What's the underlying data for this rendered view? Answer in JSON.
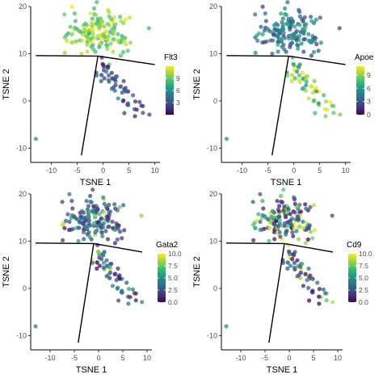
{
  "colorscale": {
    "name": "viridis",
    "stops": [
      "#440154",
      "#46327e",
      "#365c8d",
      "#277f8e",
      "#1fa187",
      "#4ac16d",
      "#a0da39",
      "#fde725"
    ]
  },
  "chart_data": [
    {
      "type": "scatter",
      "panel": "Flt3",
      "xlabel": "TSNE 1",
      "ylabel": "TSNE 2",
      "xlim": [
        -14,
        11
      ],
      "ylim": [
        -13,
        20
      ],
      "xticks": [
        "-10",
        "-5",
        "0",
        "5",
        "10"
      ],
      "yticks": [
        "-10",
        "0",
        "10",
        "20"
      ],
      "legend_title": "Flt3",
      "legend_range": [
        0,
        12
      ],
      "legend_ticks": [
        "3",
        "6",
        "9"
      ],
      "legend_tick_values": [
        3,
        6,
        9
      ],
      "trajectory": [
        [
          -13,
          9.6
        ],
        [
          -1,
          9.5
        ],
        [
          10,
          7.7
        ],
        [
          -1,
          9.5
        ],
        [
          -4.2,
          -11.5
        ]
      ],
      "high_region": "top"
    },
    {
      "type": "scatter",
      "panel": "Apoe",
      "xlabel": "TSNE 1",
      "ylabel": "TSNE 2",
      "xlim": [
        -14,
        11
      ],
      "ylim": [
        -13,
        20
      ],
      "xticks": [
        "-10",
        "-5",
        "0",
        "5",
        "10"
      ],
      "yticks": [
        "-10",
        "0",
        "10",
        "20"
      ],
      "legend_title": "Apoe",
      "legend_range": [
        0,
        11
      ],
      "legend_ticks": [
        "0",
        "3",
        "6",
        "9"
      ],
      "legend_tick_values": [
        0,
        3,
        6,
        9
      ],
      "trajectory": [
        [
          -13,
          9.6
        ],
        [
          -1,
          9.5
        ],
        [
          10,
          7.7
        ],
        [
          -1,
          9.5
        ],
        [
          -4.2,
          -11.5
        ]
      ],
      "high_region": "bottom"
    },
    {
      "type": "scatter",
      "panel": "Gata2",
      "xlabel": "TSNE 1",
      "ylabel": "TSNE 2",
      "xlim": [
        -14,
        11
      ],
      "ylim": [
        -13,
        20
      ],
      "xticks": [
        "-10",
        "-5",
        "0",
        "5",
        "10"
      ],
      "yticks": [
        "-10",
        "0",
        "10",
        "20"
      ],
      "legend_title": "Gata2",
      "legend_range": [
        0,
        10
      ],
      "legend_ticks": [
        "0.0",
        "2.5",
        "5.0",
        "7.5",
        "10.0"
      ],
      "legend_tick_values": [
        0,
        2.5,
        5,
        7.5,
        10
      ],
      "trajectory": [
        [
          -13,
          9.6
        ],
        [
          -1,
          9.5
        ],
        [
          9,
          7.7
        ],
        [
          -1,
          9.5
        ],
        [
          -4.2,
          -11.5
        ]
      ],
      "high_region": "mixed"
    },
    {
      "type": "scatter",
      "panel": "Cd9",
      "xlabel": "TSNE 1",
      "ylabel": "TSNE 2",
      "xlim": [
        -14,
        11
      ],
      "ylim": [
        -13,
        20
      ],
      "xticks": [
        "-10",
        "-5",
        "0",
        "5",
        "10"
      ],
      "yticks": [
        "-10",
        "0",
        "10",
        "20"
      ],
      "legend_title": "Cd9",
      "legend_range": [
        0,
        10
      ],
      "legend_ticks": [
        "0.0",
        "2.5",
        "5.0",
        "7.5",
        "10.0"
      ],
      "legend_tick_values": [
        0,
        2.5,
        5,
        7.5,
        10
      ],
      "trajectory": [
        [
          -13,
          9.6
        ],
        [
          -1,
          9.5
        ],
        [
          9,
          7.7
        ],
        [
          -1,
          9.5
        ],
        [
          -4.2,
          -11.5
        ]
      ],
      "high_region": "mixed"
    }
  ]
}
